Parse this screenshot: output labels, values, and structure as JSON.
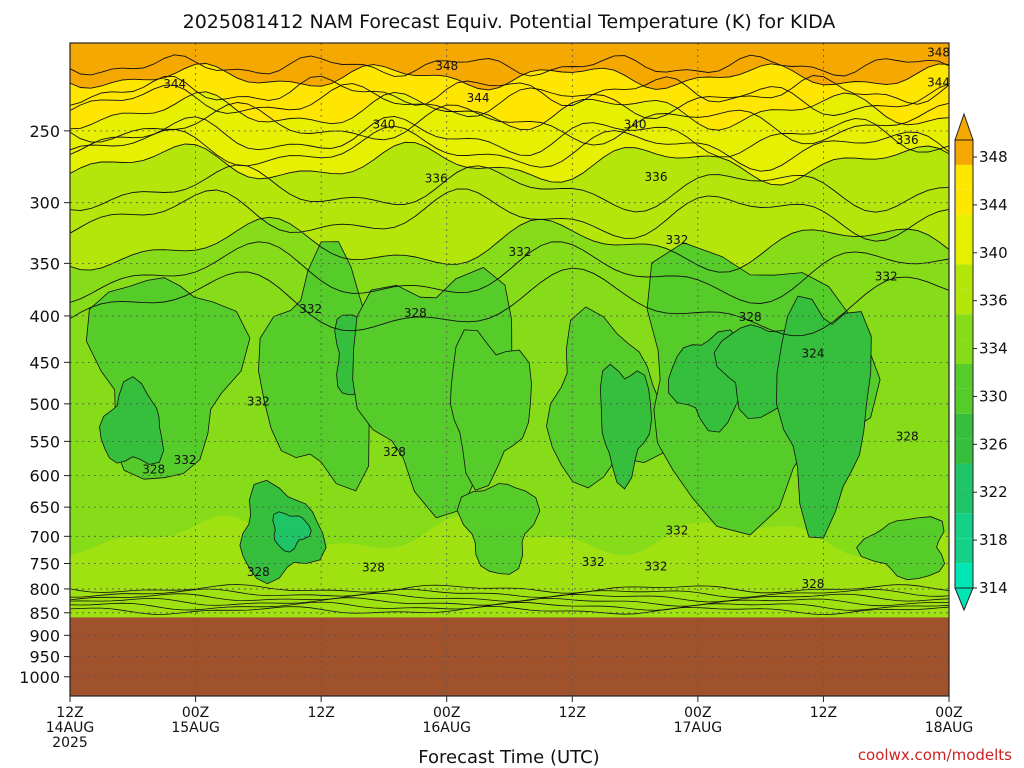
{
  "chart_data": {
    "type": "heatmap",
    "title": "2025081412 NAM Forecast Equiv. Potential Temperature (K) for KIDA",
    "xlabel": "Forecast Time (UTC)",
    "ylabel": "",
    "x_ticks": [
      {
        "l1": "12Z",
        "l2": "14AUG",
        "l3": "2025"
      },
      {
        "l1": "00Z",
        "l2": "15AUG",
        "l3": ""
      },
      {
        "l1": "12Z",
        "l2": "",
        "l3": ""
      },
      {
        "l1": "00Z",
        "l2": "16AUG",
        "l3": ""
      },
      {
        "l1": "12Z",
        "l2": "",
        "l3": ""
      },
      {
        "l1": "00Z",
        "l2": "17AUG",
        "l3": ""
      },
      {
        "l1": "12Z",
        "l2": "",
        "l3": ""
      },
      {
        "l1": "00Z",
        "l2": "18AUG",
        "l3": ""
      }
    ],
    "x_hours": [
      0,
      12,
      24,
      36,
      48,
      60,
      72,
      84
    ],
    "y_ticks": [
      250,
      300,
      350,
      400,
      450,
      500,
      550,
      600,
      650,
      700,
      750,
      800,
      850,
      900,
      950,
      1000
    ],
    "y_range_hpa": [
      200,
      1050
    ],
    "surface_pressure_hpa": 860,
    "colorbar_levels": [
      314,
      318,
      322,
      326,
      330,
      334,
      336,
      340,
      344,
      348
    ],
    "colorbar_labels": [
      "348",
      "344",
      "340",
      "336",
      "334",
      "330",
      "326",
      "322",
      "318",
      "314"
    ],
    "colors": {
      "c314": "#00e7b4",
      "c318": "#14d088",
      "c322": "#1ec465",
      "c326": "#36bf3c",
      "c330": "#56cc2a",
      "c334": "#87dc1a",
      "c336": "#b4e60c",
      "c340": "#e6f000",
      "c344": "#ffe600",
      "c348": "#f5a800",
      "ground": "#a0522d"
    },
    "contour_labels": [
      {
        "text": "348",
        "h": 36,
        "p": 212
      },
      {
        "text": "348",
        "h": 83,
        "p": 205
      },
      {
        "text": "344",
        "h": 10,
        "p": 222
      },
      {
        "text": "344",
        "h": 39,
        "p": 230
      },
      {
        "text": "344",
        "h": 83,
        "p": 221
      },
      {
        "text": "340",
        "h": 30,
        "p": 246
      },
      {
        "text": "340",
        "h": 54,
        "p": 246
      },
      {
        "text": "336",
        "h": 80,
        "p": 256
      },
      {
        "text": "336",
        "h": 35,
        "p": 282
      },
      {
        "text": "336",
        "h": 56,
        "p": 281
      },
      {
        "text": "332",
        "h": 43,
        "p": 340
      },
      {
        "text": "332",
        "h": 58,
        "p": 330
      },
      {
        "text": "332",
        "h": 78,
        "p": 362
      },
      {
        "text": "332",
        "h": 23,
        "p": 393
      },
      {
        "text": "328",
        "h": 33,
        "p": 397
      },
      {
        "text": "328",
        "h": 65,
        "p": 401
      },
      {
        "text": "324",
        "h": 71,
        "p": 440
      },
      {
        "text": "332",
        "h": 18,
        "p": 497
      },
      {
        "text": "328",
        "h": 31,
        "p": 565
      },
      {
        "text": "328",
        "h": 80,
        "p": 543
      },
      {
        "text": "332",
        "h": 11,
        "p": 577
      },
      {
        "text": "328",
        "h": 8,
        "p": 591
      },
      {
        "text": "332",
        "h": 58,
        "p": 690
      },
      {
        "text": "332",
        "h": 50,
        "p": 747
      },
      {
        "text": "332",
        "h": 56,
        "p": 756
      },
      {
        "text": "328",
        "h": 29,
        "p": 758
      },
      {
        "text": "328",
        "h": 18,
        "p": 766
      },
      {
        "text": "328",
        "h": 71,
        "p": 790
      }
    ],
    "credit": "coolwx.com/modelts"
  }
}
